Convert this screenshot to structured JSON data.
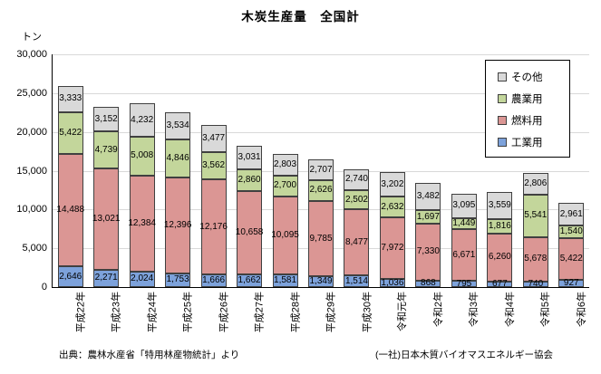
{
  "page": {
    "title": "木炭生産量　全国計",
    "unit_label": "トン",
    "source_left": "出典：農林水産省「特用林産物統計」より",
    "source_right": "(一社)日本木質バイオマスエネルギー協会"
  },
  "chart_data": {
    "type": "bar",
    "stacked": true,
    "title": "木炭生産量　全国計",
    "ylabel": "トン",
    "ylim": [
      0,
      30000
    ],
    "ytick_interval": 5000,
    "ytick_labels": [
      "0",
      "5,000",
      "10,000",
      "15,000",
      "20,000",
      "25,000",
      "30,000"
    ],
    "grid": true,
    "legend_position": "top-right",
    "legend_order_top_to_bottom": [
      "その他",
      "農業用",
      "燃料用",
      "工業用"
    ],
    "categories": [
      "平成22年",
      "平成23年",
      "平成24年",
      "平成25年",
      "平成26年",
      "平成27年",
      "平成28年",
      "平成29年",
      "平成30年",
      "令和元年",
      "令和2年",
      "令和3年",
      "令和4年",
      "令和5年",
      "令和6年"
    ],
    "series": [
      {
        "name": "工業用",
        "color": "#7DA2DB",
        "values": [
          2646,
          2271,
          2024,
          1753,
          1666,
          1662,
          1581,
          1349,
          1514,
          1036,
          868,
          795,
          677,
          740,
          927
        ]
      },
      {
        "name": "燃料用",
        "color": "#DB9694",
        "values": [
          14488,
          13021,
          12384,
          12396,
          12176,
          10658,
          10095,
          9785,
          8477,
          7972,
          7330,
          6671,
          6260,
          5678,
          5422
        ]
      },
      {
        "name": "農業用",
        "color": "#C3D69B",
        "values": [
          5422,
          4739,
          5008,
          4846,
          3562,
          2860,
          2700,
          2626,
          2502,
          2632,
          1697,
          1449,
          1816,
          5541,
          1540
        ]
      },
      {
        "name": "その他",
        "color": "#D9D9D9",
        "values": [
          3333,
          3152,
          4232,
          3534,
          3477,
          3031,
          2803,
          2707,
          2740,
          3202,
          3482,
          3095,
          3559,
          2806,
          2961
        ]
      }
    ]
  },
  "colors": {
    "gridline": "#D9D9D9",
    "axis": "#000000",
    "segment_border": "#404040"
  }
}
